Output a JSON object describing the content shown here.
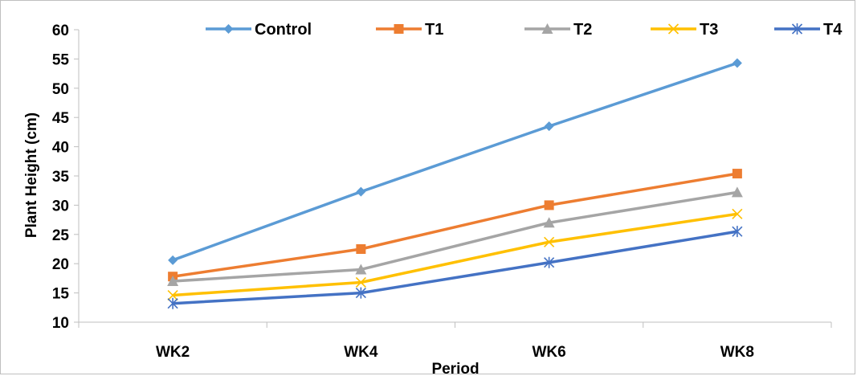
{
  "chart_data": {
    "type": "line",
    "title": "",
    "xlabel": "Period",
    "ylabel": "Plant Height (cm)",
    "categories": [
      "WK2",
      "WK4",
      "WK6",
      "WK8"
    ],
    "ylim": [
      10,
      60
    ],
    "yticks": [
      10,
      15,
      20,
      25,
      30,
      35,
      40,
      45,
      50,
      55,
      60
    ],
    "grid": false,
    "legend_position": "top",
    "series": [
      {
        "name": "Control",
        "values": [
          20.6,
          32.3,
          43.5,
          54.3
        ],
        "color": "#5B9BD5",
        "marker": "diamond"
      },
      {
        "name": "T1",
        "values": [
          17.8,
          22.5,
          30.0,
          35.4
        ],
        "color": "#ED7D31",
        "marker": "square"
      },
      {
        "name": "T2",
        "values": [
          17.0,
          19.0,
          27.0,
          32.2
        ],
        "color": "#A5A5A5",
        "marker": "triangle"
      },
      {
        "name": "T3",
        "values": [
          14.6,
          16.8,
          23.7,
          28.5
        ],
        "color": "#FFC000",
        "marker": "x"
      },
      {
        "name": "T4",
        "values": [
          13.2,
          15.0,
          20.2,
          25.5
        ],
        "color": "#4472C4",
        "marker": "star"
      }
    ]
  }
}
